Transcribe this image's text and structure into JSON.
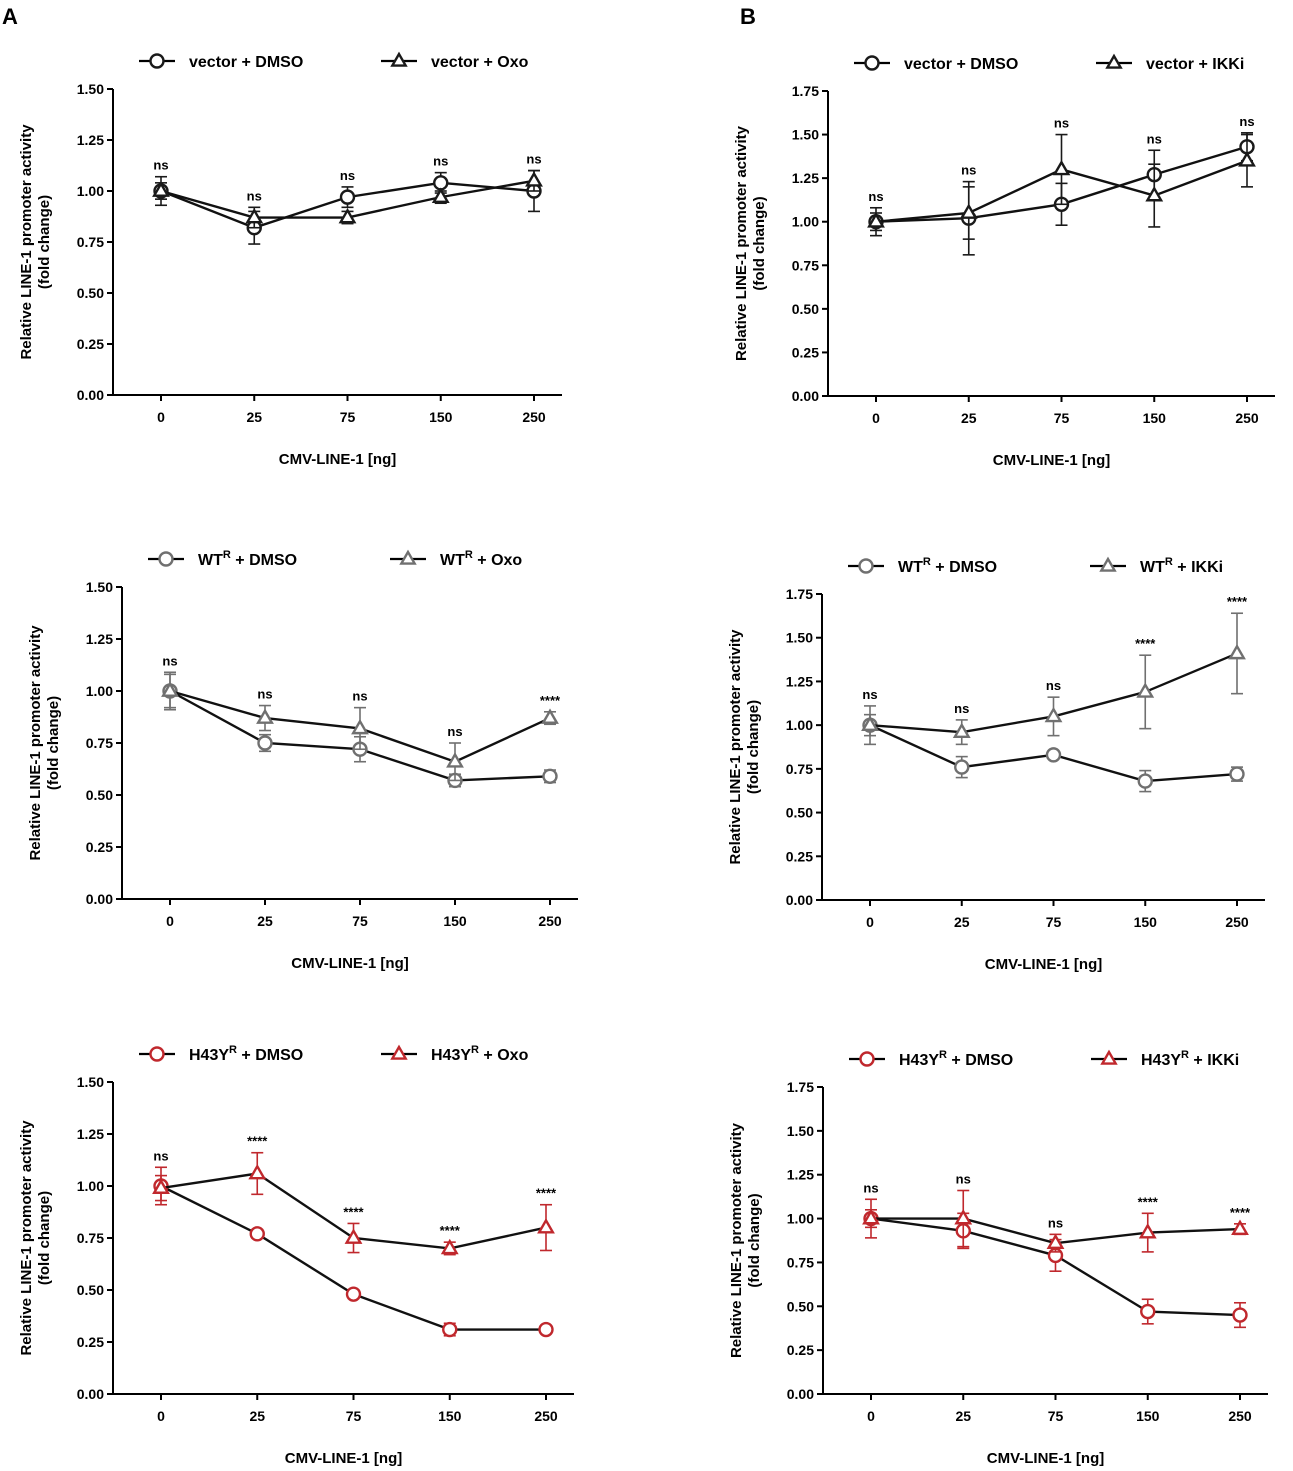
{
  "figure": {
    "panel_labels": [
      "A",
      "B"
    ]
  },
  "chart_data": [
    {
      "type": "line",
      "panel": "A",
      "xlabel": "CMV-LINE-1 [ng]",
      "ylabel": [
        "Relative LINE-1 promoter activity",
        "(fold change)"
      ],
      "categories": [
        "0",
        "25",
        "75",
        "150",
        "250"
      ],
      "ylim": [
        0,
        1.5
      ],
      "yticks": [
        "0.00",
        "0.25",
        "0.50",
        "0.75",
        "1.00",
        "1.25",
        "1.50"
      ],
      "series": [
        {
          "name": "vector + DMSO",
          "prefix": "vector",
          "sup": "",
          "suffix": " + DMSO",
          "marker": "circle",
          "color": "#1a1a1a",
          "values": [
            1.0,
            0.82,
            0.97,
            1.04,
            1.0
          ],
          "errors": [
            0.07,
            0.08,
            0.05,
            0.05,
            0.1
          ]
        },
        {
          "name": "vector + Oxo",
          "prefix": "vector",
          "sup": "",
          "suffix": " + Oxo",
          "marker": "triangle",
          "color": "#1a1a1a",
          "values": [
            1.0,
            0.87,
            0.87,
            0.97,
            1.05
          ],
          "errors": [
            0.04,
            0.05,
            0.03,
            0.03,
            0.05
          ]
        }
      ],
      "annotations": [
        "ns",
        "ns",
        "ns",
        "ns",
        "ns"
      ]
    },
    {
      "type": "line",
      "panel": "B",
      "xlabel": "CMV-LINE-1 [ng]",
      "ylabel": [
        "Relative LINE-1 promoter activity",
        "(fold change)"
      ],
      "categories": [
        "0",
        "25",
        "75",
        "150",
        "250"
      ],
      "ylim": [
        0,
        1.75
      ],
      "yticks": [
        "0.00",
        "0.25",
        "0.50",
        "0.75",
        "1.00",
        "1.25",
        "1.50",
        "1.75"
      ],
      "series": [
        {
          "name": "vector + DMSO",
          "prefix": "vector",
          "sup": "",
          "suffix": " + DMSO",
          "marker": "circle",
          "color": "#1a1a1a",
          "values": [
            1.0,
            1.02,
            1.1,
            1.27,
            1.43
          ],
          "errors": [
            0.08,
            0.21,
            0.12,
            0.14,
            0.08
          ]
        },
        {
          "name": "vector + IKKi",
          "prefix": "vector",
          "sup": "",
          "suffix": " + IKKi",
          "marker": "triangle",
          "color": "#1a1a1a",
          "values": [
            1.0,
            1.05,
            1.3,
            1.15,
            1.35
          ],
          "errors": [
            0.05,
            0.15,
            0.2,
            0.18,
            0.15
          ]
        }
      ],
      "annotations": [
        "ns",
        "ns",
        "ns",
        "ns",
        "ns"
      ]
    },
    {
      "type": "line",
      "panel": "A",
      "xlabel": "CMV-LINE-1 [ng]",
      "ylabel": [
        "Relative LINE-1 promoter activity",
        "(fold change)"
      ],
      "categories": [
        "0",
        "25",
        "75",
        "150",
        "250"
      ],
      "ylim": [
        0,
        1.5
      ],
      "yticks": [
        "0.00",
        "0.25",
        "0.50",
        "0.75",
        "1.00",
        "1.25",
        "1.50"
      ],
      "series": [
        {
          "name": "WTR + DMSO",
          "prefix": "WT",
          "sup": "R",
          "suffix": " + DMSO",
          "marker": "circle",
          "color": "#707070",
          "values": [
            1.0,
            0.75,
            0.72,
            0.57,
            0.59
          ],
          "errors": [
            0.09,
            0.04,
            0.06,
            0.03,
            0.03
          ]
        },
        {
          "name": "WTR + Oxo",
          "prefix": "WT",
          "sup": "R",
          "suffix": " + Oxo",
          "marker": "triangle",
          "color": "#707070",
          "values": [
            1.0,
            0.87,
            0.82,
            0.66,
            0.87
          ],
          "errors": [
            0.08,
            0.06,
            0.1,
            0.09,
            0.03
          ]
        }
      ],
      "annotations": [
        "ns",
        "ns",
        "ns",
        "ns",
        "****"
      ]
    },
    {
      "type": "line",
      "panel": "B",
      "xlabel": "CMV-LINE-1 [ng]",
      "ylabel": [
        "Relative LINE-1 promoter activity",
        "(fold change)"
      ],
      "categories": [
        "0",
        "25",
        "75",
        "150",
        "250"
      ],
      "ylim": [
        0,
        1.75
      ],
      "yticks": [
        "0.00",
        "0.25",
        "0.50",
        "0.75",
        "1.00",
        "1.25",
        "1.50",
        "1.75"
      ],
      "series": [
        {
          "name": "WTR + DMSO",
          "prefix": "WT",
          "sup": "R",
          "suffix": " + DMSO",
          "marker": "circle",
          "color": "#707070",
          "values": [
            1.0,
            0.76,
            0.83,
            0.68,
            0.72
          ],
          "errors": [
            0.11,
            0.06,
            0.02,
            0.06,
            0.04
          ]
        },
        {
          "name": "WTR + IKKi",
          "prefix": "WT",
          "sup": "R",
          "suffix": " + IKKi",
          "marker": "triangle",
          "color": "#707070",
          "values": [
            1.0,
            0.96,
            1.05,
            1.19,
            1.41
          ],
          "errors": [
            0.06,
            0.07,
            0.11,
            0.21,
            0.23
          ]
        }
      ],
      "annotations": [
        "ns",
        "ns",
        "ns",
        "****",
        "****"
      ]
    },
    {
      "type": "line",
      "panel": "A",
      "xlabel": "CMV-LINE-1 [ng]",
      "ylabel": [
        "Relative LINE-1 promoter activity",
        "(fold change)"
      ],
      "categories": [
        "0",
        "25",
        "75",
        "150",
        "250"
      ],
      "ylim": [
        0,
        1.5
      ],
      "yticks": [
        "0.00",
        "0.25",
        "0.50",
        "0.75",
        "1.00",
        "1.25",
        "1.50"
      ],
      "series": [
        {
          "name": "H43YR + DMSO",
          "prefix": "H43Y",
          "sup": "R",
          "suffix": " + DMSO",
          "marker": "circle",
          "color": "#c0282d",
          "values": [
            1.0,
            0.77,
            0.48,
            0.31,
            0.31
          ],
          "errors": [
            0.09,
            0.02,
            0.02,
            0.03,
            0.02
          ]
        },
        {
          "name": "H43YR + Oxo",
          "prefix": "H43Y",
          "sup": "R",
          "suffix": " + Oxo",
          "marker": "triangle",
          "color": "#c0282d",
          "values": [
            0.99,
            1.06,
            0.75,
            0.7,
            0.8
          ],
          "errors": [
            0.06,
            0.1,
            0.07,
            0.03,
            0.11
          ]
        }
      ],
      "annotations": [
        "ns",
        "****",
        "****",
        "****",
        "****"
      ]
    },
    {
      "type": "line",
      "panel": "B",
      "xlabel": "CMV-LINE-1 [ng]",
      "ylabel": [
        "Relative LINE-1 promoter activity",
        "(fold change)"
      ],
      "categories": [
        "0",
        "25",
        "75",
        "150",
        "250"
      ],
      "ylim": [
        0,
        1.75
      ],
      "yticks": [
        "0.00",
        "0.25",
        "0.50",
        "0.75",
        "1.00",
        "1.25",
        "1.50",
        "1.75"
      ],
      "series": [
        {
          "name": "H43YR + DMSO",
          "prefix": "H43Y",
          "sup": "R",
          "suffix": " + DMSO",
          "marker": "circle",
          "color": "#c0282d",
          "values": [
            1.0,
            0.93,
            0.79,
            0.47,
            0.45
          ],
          "errors": [
            0.11,
            0.1,
            0.09,
            0.07,
            0.07
          ]
        },
        {
          "name": "H43YR + IKKi",
          "prefix": "H43Y",
          "sup": "R",
          "suffix": " + IKKi",
          "marker": "triangle",
          "color": "#c0282d",
          "values": [
            1.0,
            1.0,
            0.86,
            0.92,
            0.94
          ],
          "errors": [
            0.05,
            0.16,
            0.05,
            0.11,
            0.03
          ]
        }
      ],
      "annotations": [
        "ns",
        "ns",
        "ns",
        "****",
        "****"
      ]
    }
  ]
}
